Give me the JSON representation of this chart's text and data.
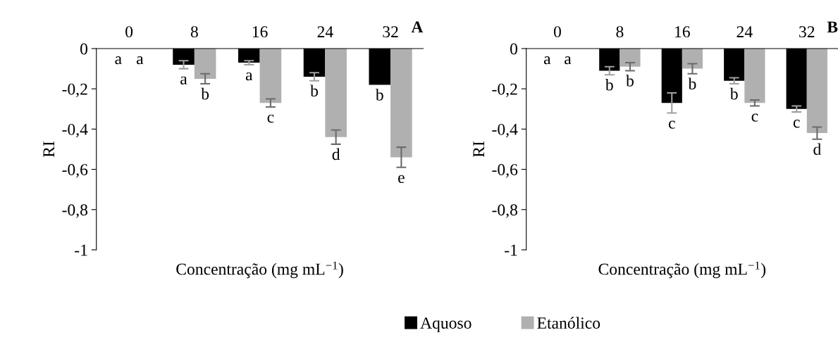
{
  "chart_data": [
    {
      "type": "bar",
      "title": "A",
      "xlabel": "Concentração (mg mL$^{−1}$)",
      "ylabel": "RI",
      "categories": [
        "0",
        "8",
        "16",
        "24",
        "32"
      ],
      "ylim": [
        -1,
        0
      ],
      "yticks": [
        {
          "value": -1,
          "label": "-1"
        },
        {
          "value": -0.8,
          "label": "-0,8"
        },
        {
          "value": -0.6,
          "label": "-0,6"
        },
        {
          "value": -0.4,
          "label": "-0,4"
        },
        {
          "value": -0.2,
          "label": "-0,2"
        },
        {
          "value": 0,
          "label": "0"
        }
      ],
      "grid": false,
      "legend": "bottom",
      "series": [
        {
          "name": "Aquoso",
          "color": "#000000",
          "values": [
            0,
            -0.08,
            -0.07,
            -0.14,
            -0.18
          ],
          "errors": [
            null,
            0.02,
            0.01,
            0.02,
            null
          ],
          "value_labels": [
            "a",
            "a",
            "a",
            "b",
            "b"
          ]
        },
        {
          "name": "Etanólico",
          "color": "#b0b0b0",
          "values": [
            0,
            -0.15,
            -0.27,
            -0.44,
            -0.54
          ],
          "errors": [
            null,
            0.025,
            0.02,
            0.035,
            0.05
          ],
          "value_labels": [
            "a",
            "b",
            "c",
            "d",
            "e"
          ]
        }
      ]
    },
    {
      "type": "bar",
      "title": "B",
      "xlabel": "Concentração (mg mL$^{−1}$)",
      "ylabel": "RI",
      "categories": [
        "0",
        "8",
        "16",
        "24",
        "32"
      ],
      "ylim": [
        -1,
        0
      ],
      "yticks": [
        {
          "value": -1,
          "label": "-1"
        },
        {
          "value": -0.8,
          "label": "-0,8"
        },
        {
          "value": -0.6,
          "label": "-0,6"
        },
        {
          "value": -0.4,
          "label": "-0,4"
        },
        {
          "value": -0.2,
          "label": "-0,2"
        },
        {
          "value": 0,
          "label": "0"
        }
      ],
      "grid": false,
      "series": [
        {
          "color": "#000000",
          "values": [
            0,
            -0.11,
            -0.27,
            -0.16,
            -0.3
          ],
          "errors": [
            null,
            0.02,
            0.05,
            0.015,
            0.015
          ],
          "value_labels": [
            "a",
            "b",
            "c",
            "b",
            "c"
          ]
        },
        {
          "color": "#b0b0b0",
          "values": [
            0,
            -0.09,
            -0.1,
            -0.27,
            -0.42
          ],
          "errors": [
            null,
            0.02,
            0.025,
            0.015,
            0.03
          ],
          "value_labels": [
            "a",
            "b",
            "b",
            "c",
            "d"
          ]
        }
      ]
    }
  ]
}
